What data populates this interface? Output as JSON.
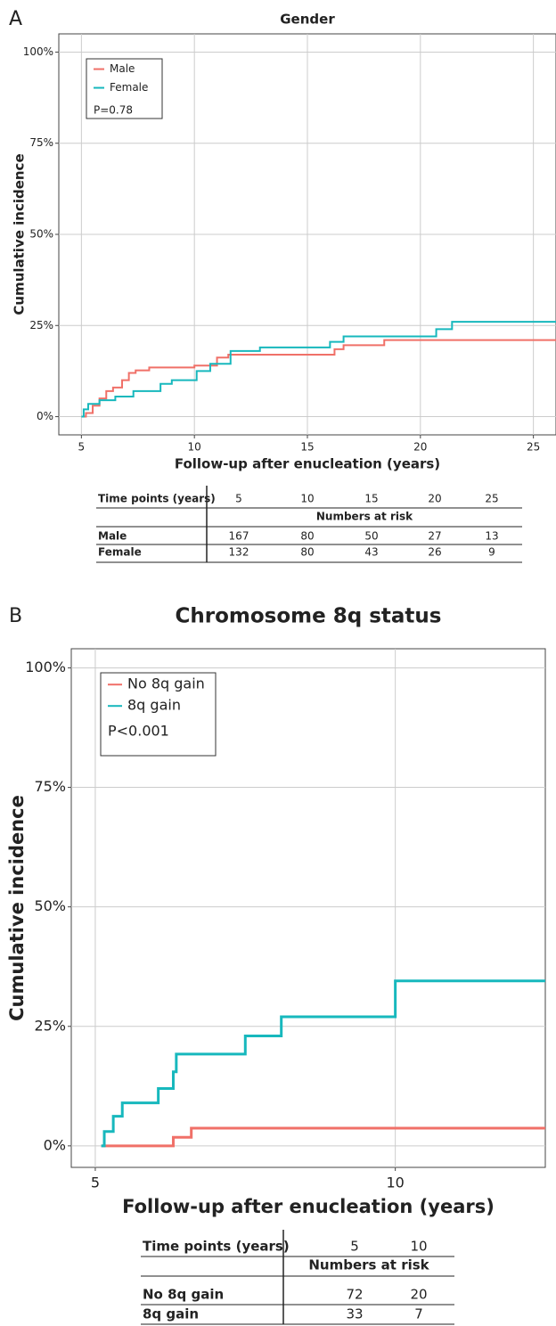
{
  "chart_data": [
    {
      "type": "step",
      "panel": "A",
      "title": "Gender",
      "x_label": "Follow-up after enucleation (years)",
      "y_label": "Cumulative incidence",
      "xlim": [
        4,
        26
      ],
      "xticks": [
        5,
        10,
        15,
        20,
        25
      ],
      "ylim": [
        -5,
        105
      ],
      "yticks": [
        {
          "value": 0,
          "label": "0%"
        },
        {
          "value": 25,
          "label": "25%"
        },
        {
          "value": 50,
          "label": "50%"
        },
        {
          "value": 75,
          "label": "75%"
        },
        {
          "value": 100,
          "label": "100%"
        }
      ],
      "grid": true,
      "legend": "top-left",
      "annotation": "P=0.78",
      "series": [
        {
          "name": "Male",
          "color": "#f07068",
          "x": [
            5,
            5.2,
            5.5,
            5.8,
            6.1,
            6.4,
            6.8,
            7.1,
            7.4,
            8,
            10,
            11,
            11.5,
            16.2,
            16.6,
            18.4,
            26
          ],
          "values": [
            0,
            1,
            3,
            5,
            7,
            8,
            10,
            12,
            12.7,
            13.5,
            14,
            16.2,
            17,
            18.5,
            19.6,
            21,
            21
          ]
        },
        {
          "name": "Female",
          "color": "#17b8bd",
          "x": [
            5,
            5.1,
            5.3,
            5.8,
            6.5,
            7.3,
            8.5,
            9,
            10.1,
            10.7,
            11.6,
            12.9,
            16,
            16.6,
            20.7,
            21.4,
            26
          ],
          "values": [
            0,
            2,
            3.5,
            4.5,
            5.5,
            7,
            9,
            10,
            12.5,
            14.5,
            18,
            19,
            20.5,
            22,
            24,
            26,
            26
          ]
        }
      ],
      "risk_table": {
        "header": "Time points (years)",
        "time_points": [
          5,
          10,
          15,
          20,
          25
        ],
        "subheader": "Numbers at risk",
        "rows": [
          {
            "name": "Male",
            "values": [
              167,
              80,
              50,
              27,
              13
            ]
          },
          {
            "name": "Female",
            "values": [
              132,
              80,
              43,
              26,
              9
            ]
          }
        ]
      }
    },
    {
      "type": "step",
      "panel": "B",
      "title": "Chromosome 8q status",
      "x_label": "Follow-up after enucleation (years)",
      "y_label": "Cumulative incidence",
      "xlim": [
        4.6,
        12.5
      ],
      "xticks": [
        5,
        10
      ],
      "ylim": [
        -4.5,
        104
      ],
      "yticks": [
        {
          "value": 0,
          "label": "0%"
        },
        {
          "value": 25,
          "label": "25%"
        },
        {
          "value": 50,
          "label": "50%"
        },
        {
          "value": 75,
          "label": "75%"
        },
        {
          "value": 100,
          "label": "100%"
        }
      ],
      "grid": true,
      "legend": "top-left",
      "annotation": "P<0.001",
      "series": [
        {
          "name": "No 8q gain",
          "color": "#f07068",
          "x": [
            5.1,
            6.3,
            6.6,
            12.5
          ],
          "values": [
            0,
            1.8,
            3.7,
            3.7
          ]
        },
        {
          "name": "8q gain",
          "color": "#17b8bd",
          "x": [
            5.1,
            5.15,
            5.3,
            5.45,
            6.05,
            6.3,
            6.35,
            7.5,
            8.1,
            10,
            12.5
          ],
          "values": [
            0,
            3,
            6.2,
            9,
            12,
            15.5,
            19.2,
            23,
            27,
            34.5,
            34.5
          ]
        }
      ],
      "risk_table": {
        "header": "Time points (years)",
        "time_points": [
          5,
          10
        ],
        "subheader": "Numbers at risk",
        "rows": [
          {
            "name": "No 8q gain",
            "values": [
              72,
              20
            ]
          },
          {
            "name": "8q gain",
            "values": [
              33,
              7
            ]
          }
        ]
      }
    }
  ]
}
